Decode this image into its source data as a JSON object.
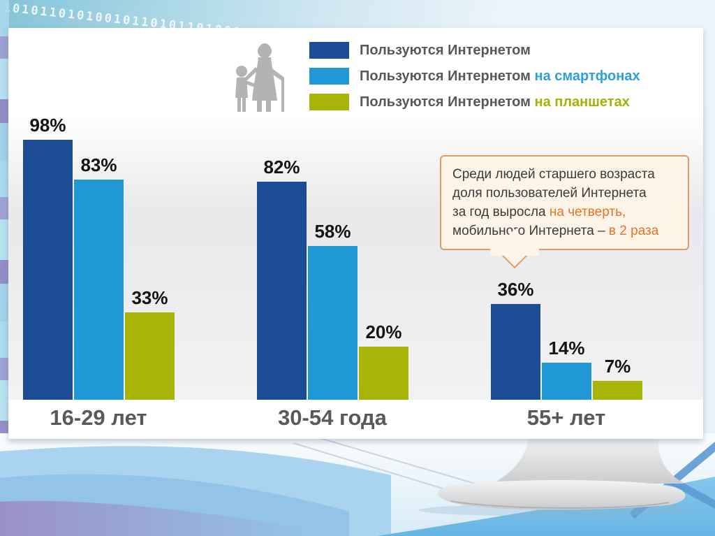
{
  "background": {
    "binary_text": "1010110101001011010110100101101011010010110101",
    "scene": "infographic shown on desktop monitor, light blue slide background"
  },
  "legend": {
    "rows": [
      {
        "text": "Пользуются Интернетом",
        "highlight": ""
      },
      {
        "text": "Пользуются Интернетом ",
        "highlight": "на смартфонах"
      },
      {
        "text": "Пользуются Интернетом ",
        "highlight": "на планшетах"
      }
    ]
  },
  "chart_data": {
    "type": "bar",
    "categories": [
      "16-29 лет",
      "30-54 года",
      "55+ лет"
    ],
    "series": [
      {
        "name": "Пользуются Интернетом",
        "color": "#1b4c94",
        "values": [
          98,
          82,
          36
        ]
      },
      {
        "name": "Пользуются Интернетом на смартфонах",
        "color": "#2098d5",
        "values": [
          83,
          58,
          14
        ]
      },
      {
        "name": "Пользуются Интернетом на планшетах",
        "color": "#a9b408",
        "values": [
          33,
          20,
          7
        ]
      }
    ],
    "value_suffix": "%",
    "ylim": [
      0,
      100
    ],
    "grid": false,
    "legend_position": "top-center",
    "title": "",
    "xlabel": "",
    "ylabel": ""
  },
  "callout": {
    "lines": [
      {
        "pre": "Среди людей старшего возраста",
        "hl": ""
      },
      {
        "pre": "доля пользователей Интернета",
        "hl": ""
      },
      {
        "pre": "за год выросла ",
        "hl": "на четверть,"
      },
      {
        "pre": "мобильного Интернета – ",
        "hl": "в 2 раза"
      }
    ]
  },
  "palette": {
    "bar_internet": "#1b4c94",
    "bar_smartphone": "#2098d5",
    "bar_tablet": "#a9b408",
    "highlight_orange": "#e8732a",
    "callout_border": "#d99c6b",
    "callout_bg": "#fcf4e6",
    "category_text": "#58595b"
  }
}
